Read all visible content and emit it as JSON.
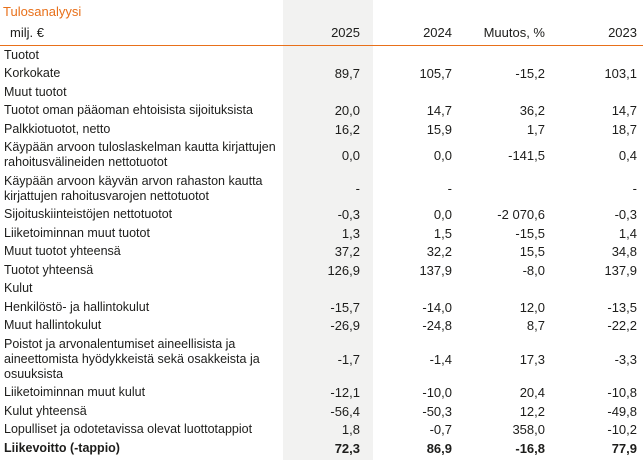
{
  "title": "Tulosanalyysi",
  "accent_color": "#e8701a",
  "highlight_band_color": "#f2f2f1",
  "header": {
    "label": "milj. €",
    "columns": [
      "2025",
      "2024",
      "Muutos, %",
      "2023"
    ]
  },
  "rows": [
    {
      "label": "Tuotot",
      "type": "section",
      "values": [
        "",
        "",
        "",
        ""
      ]
    },
    {
      "label": "Korkokate",
      "type": "data",
      "values": [
        "89,7",
        "105,7",
        "-15,2",
        "103,1"
      ]
    },
    {
      "label": "Muut tuotot",
      "type": "section",
      "values": [
        "",
        "",
        "",
        ""
      ]
    },
    {
      "label": "Tuotot oman pääoman ehtoisista sijoituksista",
      "type": "data",
      "values": [
        "20,0",
        "14,7",
        "36,2",
        "14,7"
      ]
    },
    {
      "label": "Palkkiotuotot, netto",
      "type": "data",
      "values": [
        "16,2",
        "15,9",
        "1,7",
        "18,7"
      ]
    },
    {
      "label": "Käypään arvoon tuloslaskelman kautta kirjattujen rahoitusvälineiden nettotuotot",
      "type": "data",
      "values": [
        "0,0",
        "0,0",
        "-141,5",
        "0,4"
      ]
    },
    {
      "label": "Käypään arvoon käyvän arvon rahaston kautta kirjattujen rahoitusvarojen nettotuotot",
      "type": "data",
      "values": [
        "-",
        "-",
        "",
        "-"
      ]
    },
    {
      "label": "Sijoituskiinteistöjen nettotuotot",
      "type": "data",
      "values": [
        "-0,3",
        "0,0",
        "-2 070,6",
        "-0,3"
      ]
    },
    {
      "label": "Liiketoiminnan muut tuotot",
      "type": "data",
      "values": [
        "1,3",
        "1,5",
        "-15,5",
        "1,4"
      ]
    },
    {
      "label": "Muut tuotot yhteensä",
      "type": "data",
      "values": [
        "37,2",
        "32,2",
        "15,5",
        "34,8"
      ]
    },
    {
      "label": "Tuotot yhteensä",
      "type": "data",
      "values": [
        "126,9",
        "137,9",
        "-8,0",
        "137,9"
      ]
    },
    {
      "label": "Kulut",
      "type": "section",
      "values": [
        "",
        "",
        "",
        ""
      ]
    },
    {
      "label": "Henkilöstö- ja hallintokulut",
      "type": "data",
      "values": [
        "-15,7",
        "-14,0",
        "12,0",
        "-13,5"
      ]
    },
    {
      "label": "Muut hallintokulut",
      "type": "data",
      "values": [
        "-26,9",
        "-24,8",
        "8,7",
        "-22,2"
      ]
    },
    {
      "label": "Poistot ja arvonalentumiset aineellisista ja aineettomista hyödykkeistä sekä osakkeista ja osuuksista",
      "type": "data",
      "values": [
        "-1,7",
        "-1,4",
        "17,3",
        "-3,3"
      ]
    },
    {
      "label": "Liiketoiminnan muut kulut",
      "type": "data",
      "values": [
        "-12,1",
        "-10,0",
        "20,4",
        "-10,8"
      ]
    },
    {
      "label": "Kulut yhteensä",
      "type": "data",
      "values": [
        "-56,4",
        "-50,3",
        "12,2",
        "-49,8"
      ]
    },
    {
      "label": "Lopulliset ja odotetavissa olevat luottotappiot",
      "type": "data",
      "values": [
        "1,8",
        "-0,7",
        "358,0",
        "-10,2"
      ]
    },
    {
      "label": "Liikevoitto (-tappio)",
      "type": "bold",
      "values": [
        "72,3",
        "86,9",
        "-16,8",
        "77,9"
      ]
    }
  ]
}
